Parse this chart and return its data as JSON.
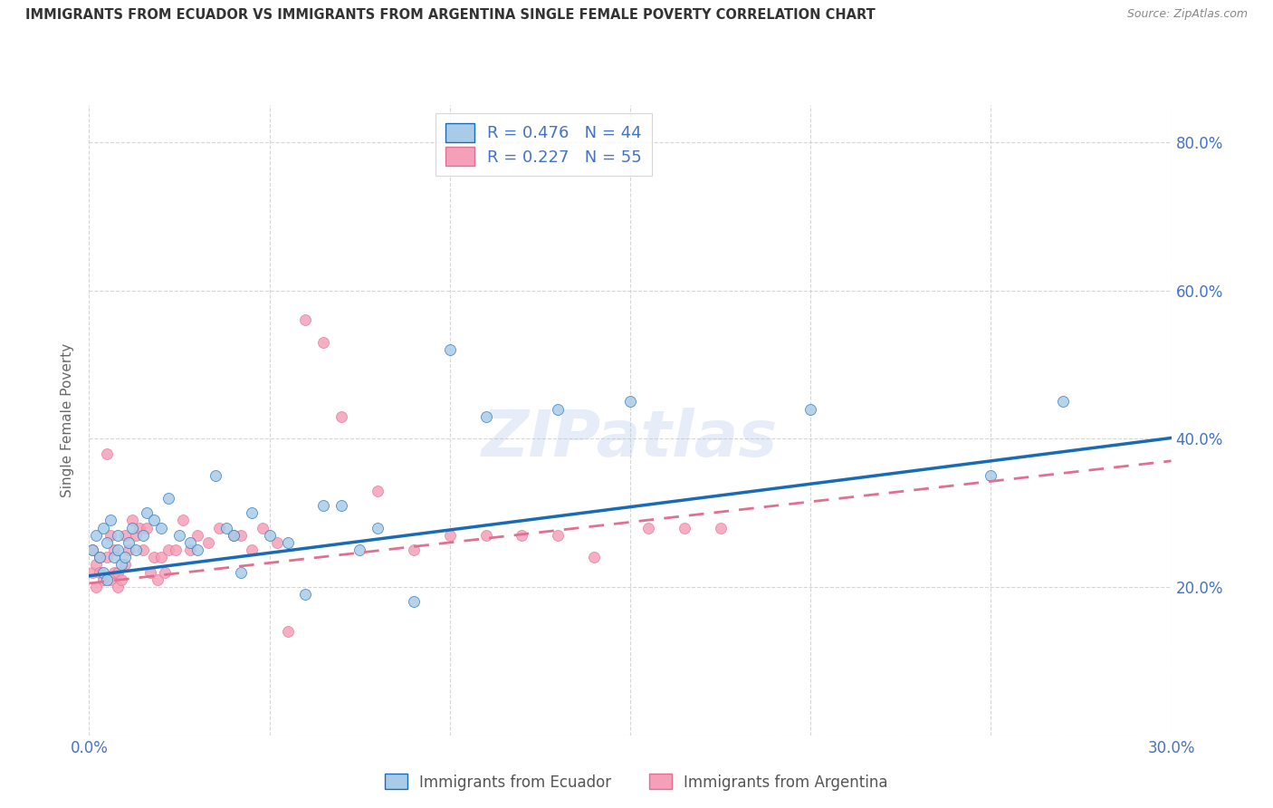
{
  "title": "IMMIGRANTS FROM ECUADOR VS IMMIGRANTS FROM ARGENTINA SINGLE FEMALE POVERTY CORRELATION CHART",
  "source": "Source: ZipAtlas.com",
  "ylabel_label": "Single Female Poverty",
  "xlim": [
    0.0,
    0.3
  ],
  "ylim": [
    0.0,
    0.85
  ],
  "xtick_vals": [
    0.0,
    0.05,
    0.1,
    0.15,
    0.2,
    0.25,
    0.3
  ],
  "xtick_labels": [
    "0.0%",
    "",
    "",
    "",
    "",
    "",
    "30.0%"
  ],
  "ytick_vals": [
    0.0,
    0.2,
    0.4,
    0.6,
    0.8
  ],
  "ytick_labels": [
    "",
    "20.0%",
    "40.0%",
    "60.0%",
    "80.0%"
  ],
  "color_ecuador": "#a8cce8",
  "color_argentina": "#f4a0b8",
  "line_ecuador": "#1a6bb5",
  "line_argentina": "#e07090",
  "R_ecuador": 0.476,
  "N_ecuador": 44,
  "R_argentina": 0.227,
  "N_argentina": 55,
  "watermark": "ZIPatlas",
  "ecuador_x": [
    0.001,
    0.002,
    0.003,
    0.004,
    0.004,
    0.005,
    0.005,
    0.006,
    0.007,
    0.008,
    0.008,
    0.009,
    0.01,
    0.011,
    0.012,
    0.013,
    0.015,
    0.016,
    0.018,
    0.02,
    0.022,
    0.025,
    0.028,
    0.03,
    0.035,
    0.038,
    0.04,
    0.042,
    0.045,
    0.05,
    0.055,
    0.06,
    0.065,
    0.07,
    0.075,
    0.08,
    0.09,
    0.1,
    0.11,
    0.13,
    0.15,
    0.2,
    0.25,
    0.27
  ],
  "ecuador_y": [
    0.25,
    0.27,
    0.24,
    0.22,
    0.28,
    0.26,
    0.21,
    0.29,
    0.24,
    0.25,
    0.27,
    0.23,
    0.24,
    0.26,
    0.28,
    0.25,
    0.27,
    0.3,
    0.29,
    0.28,
    0.32,
    0.27,
    0.26,
    0.25,
    0.35,
    0.28,
    0.27,
    0.22,
    0.3,
    0.27,
    0.26,
    0.19,
    0.31,
    0.31,
    0.25,
    0.28,
    0.18,
    0.52,
    0.43,
    0.44,
    0.45,
    0.44,
    0.35,
    0.45
  ],
  "argentina_x": [
    0.001,
    0.001,
    0.002,
    0.002,
    0.003,
    0.003,
    0.004,
    0.005,
    0.005,
    0.006,
    0.006,
    0.007,
    0.007,
    0.008,
    0.008,
    0.009,
    0.01,
    0.01,
    0.011,
    0.012,
    0.013,
    0.014,
    0.015,
    0.016,
    0.017,
    0.018,
    0.019,
    0.02,
    0.021,
    0.022,
    0.024,
    0.026,
    0.028,
    0.03,
    0.033,
    0.036,
    0.04,
    0.042,
    0.045,
    0.048,
    0.052,
    0.055,
    0.06,
    0.065,
    0.07,
    0.08,
    0.09,
    0.1,
    0.11,
    0.12,
    0.13,
    0.14,
    0.155,
    0.165,
    0.175
  ],
  "argentina_y": [
    0.22,
    0.25,
    0.2,
    0.23,
    0.22,
    0.24,
    0.21,
    0.24,
    0.38,
    0.21,
    0.27,
    0.22,
    0.25,
    0.22,
    0.2,
    0.21,
    0.27,
    0.23,
    0.25,
    0.29,
    0.27,
    0.28,
    0.25,
    0.28,
    0.22,
    0.24,
    0.21,
    0.24,
    0.22,
    0.25,
    0.25,
    0.29,
    0.25,
    0.27,
    0.26,
    0.28,
    0.27,
    0.27,
    0.25,
    0.28,
    0.26,
    0.14,
    0.56,
    0.53,
    0.43,
    0.33,
    0.25,
    0.27,
    0.27,
    0.27,
    0.27,
    0.24,
    0.28,
    0.28,
    0.28
  ],
  "ec_slope": 0.62,
  "ec_intercept": 0.215,
  "ar_slope": 0.55,
  "ar_intercept": 0.205
}
